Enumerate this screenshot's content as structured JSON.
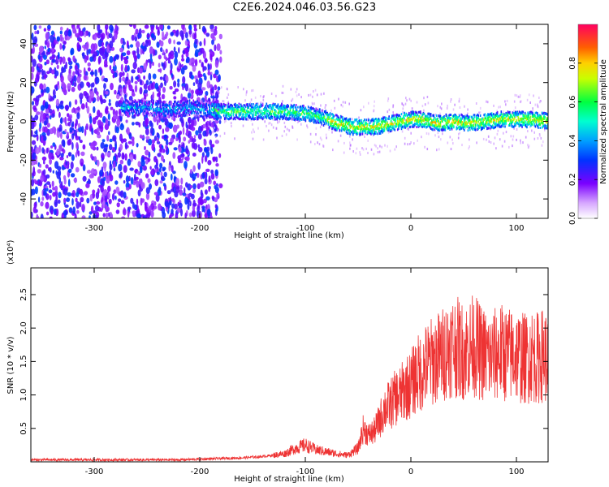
{
  "page_title": "C2E6.2024.046.03.56.G23",
  "chart_data": [
    {
      "type": "heatmap",
      "title": "C2E6.2024.046.03.56.G23",
      "xlabel": "Height of straight line (km)",
      "ylabel": "Frequency (Hz)",
      "xlim": [
        -360,
        130
      ],
      "ylim": [
        -50,
        50
      ],
      "xticks": [
        -300,
        -200,
        -100,
        0,
        100
      ],
      "yticks": [
        -40,
        -20,
        0,
        20,
        40
      ],
      "colorbar": {
        "label": "Normalized spectral amplitude",
        "range": [
          0.0,
          1.0
        ],
        "ticks": [
          0.0,
          0.2,
          0.4,
          0.6,
          0.8
        ],
        "tick_labels": [
          "0.0",
          "0.2",
          "0.4",
          "0.6",
          "0.8"
        ],
        "colormap": "rainbow"
      },
      "ridge_frequency": {
        "x": [
          -270,
          -250,
          -230,
          -210,
          -195,
          -180,
          -160,
          -140,
          -120,
          -100,
          -85,
          -70,
          -55,
          -40,
          -25,
          -10,
          0,
          10,
          25,
          40,
          55,
          70,
          85,
          100,
          115,
          130
        ],
        "y": [
          7,
          7,
          6,
          7,
          6,
          5,
          5,
          5,
          5,
          4,
          2,
          -1,
          -3,
          -3,
          -2,
          0,
          1,
          1,
          -1,
          0,
          -1,
          0,
          1,
          1,
          1,
          0
        ]
      },
      "noise_region": {
        "x_from": -360,
        "x_to": -190
      }
    },
    {
      "type": "line",
      "xlabel": "Height of straight line (km)",
      "ylabel": "SNR (10 * v/v)",
      "y_multiplier": "(x10⁴)",
      "xlim": [
        -360,
        130
      ],
      "ylim": [
        0,
        2.9
      ],
      "xticks": [
        -300,
        -200,
        -100,
        0,
        100
      ],
      "yticks": [
        0.5,
        1.0,
        1.5,
        2.0,
        2.5
      ],
      "ytick_labels": [
        "0.5",
        "1.0",
        "1.5",
        "2.0",
        "2.5"
      ],
      "series": [
        {
          "color": "#ee3333",
          "x": [
            -360,
            -340,
            -320,
            -300,
            -280,
            -260,
            -240,
            -220,
            -200,
            -180,
            -160,
            -140,
            -120,
            -110,
            -100,
            -90,
            -80,
            -70,
            -60,
            -50,
            -45,
            -40,
            -35,
            -30,
            -25,
            -20,
            -15,
            -10,
            -5,
            0,
            5,
            10,
            15,
            20,
            25,
            30,
            35,
            40,
            45,
            50,
            55,
            60,
            65,
            70,
            75,
            80,
            85,
            90,
            95,
            100,
            105,
            110,
            115,
            120,
            125,
            130
          ],
          "y": [
            0.03,
            0.03,
            0.03,
            0.03,
            0.03,
            0.03,
            0.03,
            0.03,
            0.04,
            0.05,
            0.06,
            0.08,
            0.12,
            0.2,
            0.25,
            0.18,
            0.15,
            0.12,
            0.1,
            0.2,
            0.5,
            0.4,
            0.45,
            0.6,
            0.8,
            0.85,
            0.95,
            1.0,
            1.1,
            1.15,
            1.3,
            1.35,
            1.45,
            1.5,
            1.55,
            1.6,
            1.7,
            1.75,
            1.7,
            1.65,
            1.7,
            1.75,
            1.65,
            1.6,
            1.55,
            1.6,
            1.65,
            1.6,
            1.6,
            1.6,
            1.55,
            1.55,
            1.6,
            1.55,
            1.6,
            1.55
          ]
        }
      ]
    }
  ]
}
